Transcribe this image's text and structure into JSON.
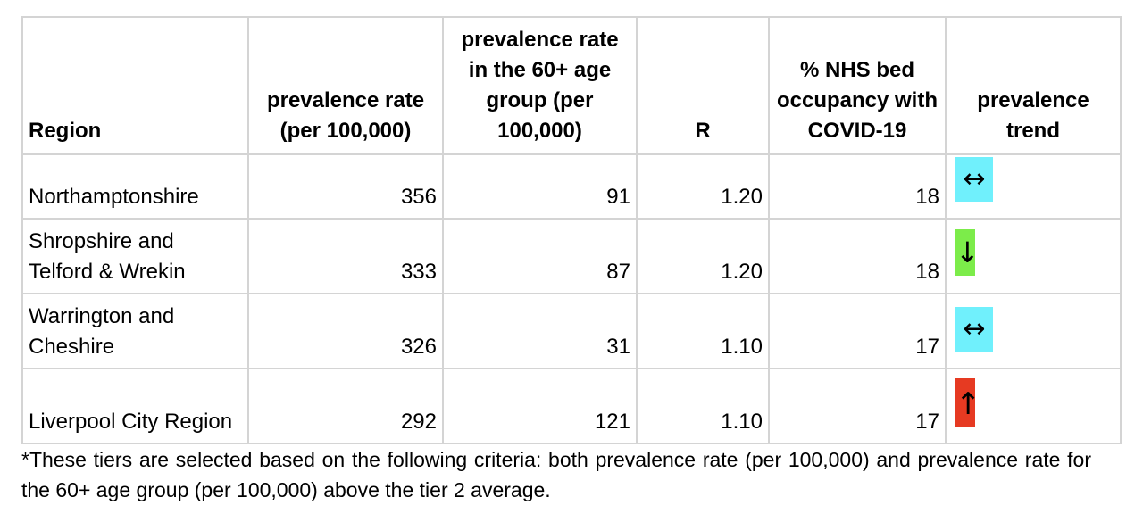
{
  "table": {
    "headers": {
      "region": "Region",
      "prevalence": "prevalence rate (per 100,000)",
      "prevalence_60": "prevalence rate in the 60+ age group (per 100,000)",
      "r": "R",
      "nhs": "% NHS  bed occupancy with COVID-19",
      "trend": "prevalence trend"
    },
    "rows": [
      {
        "region": "Northamptonshire",
        "prevalence": "356",
        "prevalence_60": "91",
        "r": "1.20",
        "nhs": "18",
        "trend_symbol": "↔",
        "trend_name": "steady-arrow-icon",
        "trend_color": "#70f0fc"
      },
      {
        "region": "Shropshire and Telford & Wrekin",
        "prevalence": "333",
        "prevalence_60": "87",
        "r": "1.20",
        "nhs": "18",
        "trend_symbol": "↓",
        "trend_name": "down-arrow-icon",
        "trend_color": "#7cec4a"
      },
      {
        "region": "Warrington and Cheshire",
        "prevalence": "326",
        "prevalence_60": "31",
        "r": "1.10",
        "nhs": "17",
        "trend_symbol": "↔",
        "trend_name": "steady-arrow-icon",
        "trend_color": "#70f0fc"
      },
      {
        "region": "Liverpool City Region",
        "prevalence": "292",
        "prevalence_60": "121",
        "r": "1.10",
        "nhs": "17",
        "trend_symbol": "↑",
        "trend_name": "up-arrow-icon",
        "trend_color": "#e63a22"
      }
    ]
  },
  "footnote": "*These tiers are selected based on the following criteria: both prevalence rate (per 100,000) and prevalence rate for the 60+ age group (per 100,000) above the tier 2 average."
}
